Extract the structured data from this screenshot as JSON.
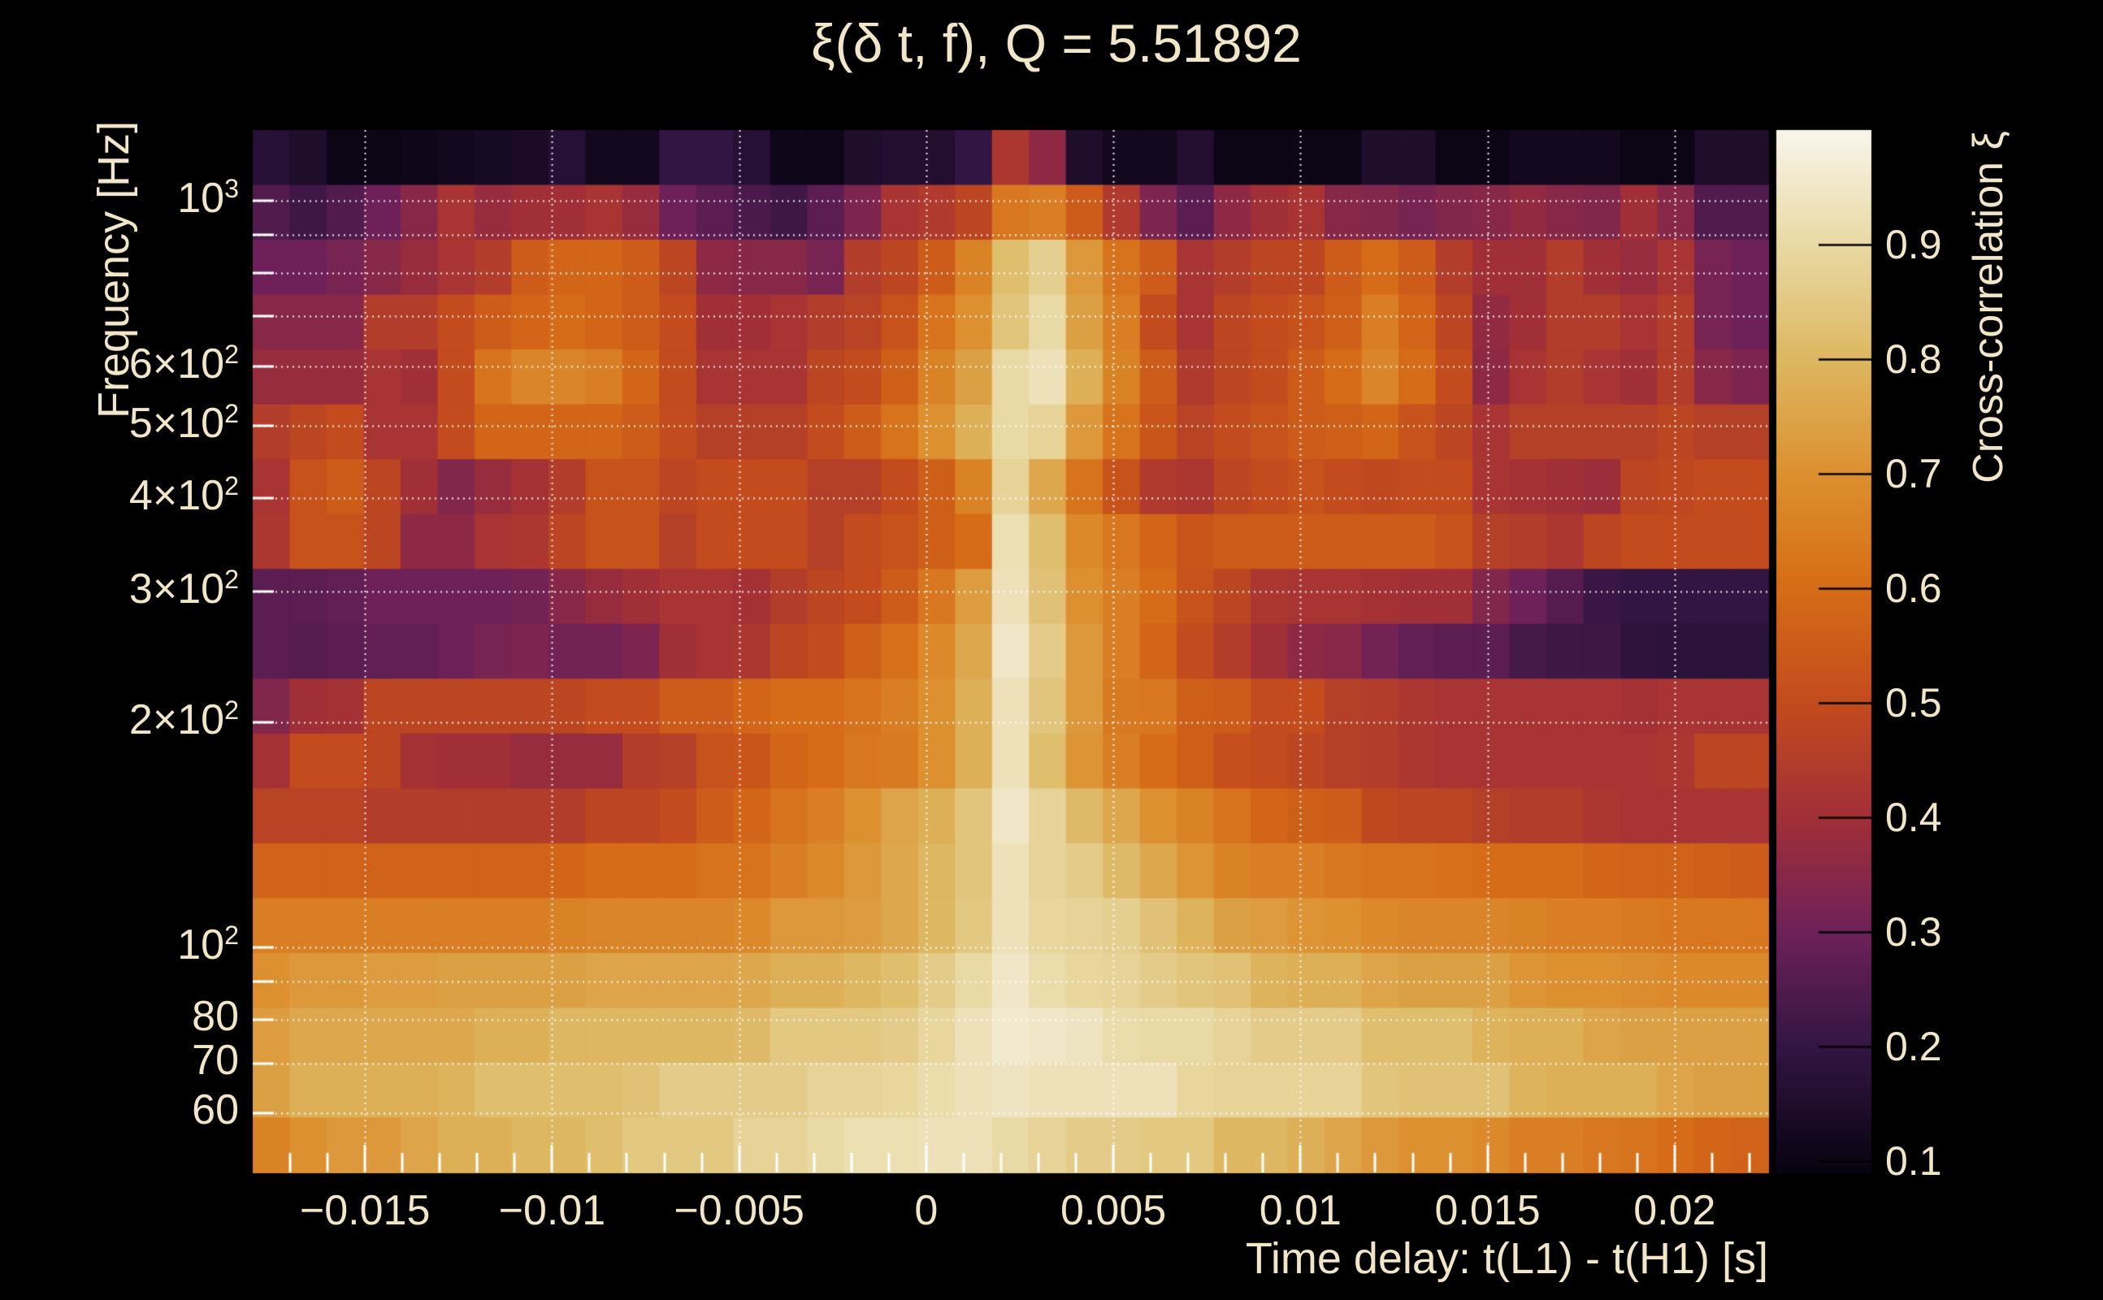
{
  "title": {
    "text": "ξ(δ t, f), Q = 5.51892"
  },
  "axes": {
    "x": {
      "title": "Time delay: t(L1) - t(H1) [s]",
      "ticks": [
        {
          "label": "−0.015",
          "value": -0.015
        },
        {
          "label": "−0.01",
          "value": -0.01
        },
        {
          "label": "−0.005",
          "value": -0.005
        },
        {
          "label": "0",
          "value": 0
        },
        {
          "label": "0.005",
          "value": 0.005
        },
        {
          "label": "0.01",
          "value": 0.01
        },
        {
          "label": "0.015",
          "value": 0.015
        },
        {
          "label": "0.02",
          "value": 0.02
        }
      ],
      "minor_tick_step": 0.001
    },
    "y": {
      "title": "Frequency [Hz]",
      "scale": "log",
      "ticks": [
        {
          "label": "10",
          "sup": "3",
          "value": 1000
        },
        {
          "label": "6×10",
          "sup": "2",
          "value": 600
        },
        {
          "label": "5×10",
          "sup": "2",
          "value": 500
        },
        {
          "label": "4×10",
          "sup": "2",
          "value": 400
        },
        {
          "label": "3×10",
          "sup": "2",
          "value": 300
        },
        {
          "label": "2×10",
          "sup": "2",
          "value": 200
        },
        {
          "label": "10",
          "sup": "2",
          "value": 100
        },
        {
          "label": "80",
          "value": 80
        },
        {
          "label": "70",
          "value": 70
        },
        {
          "label": "60",
          "value": 60
        }
      ],
      "gridline_values": [
        1000,
        900,
        800,
        700,
        600,
        500,
        400,
        300,
        200,
        100,
        90,
        80,
        70,
        60
      ]
    },
    "z": {
      "title": "Cross-correlation ξ",
      "range": [
        0.09,
        1.0
      ],
      "ticks": [
        {
          "label": "0.9",
          "value": 0.9
        },
        {
          "label": "0.8",
          "value": 0.8
        },
        {
          "label": "0.7",
          "value": 0.7
        },
        {
          "label": "0.6",
          "value": 0.6
        },
        {
          "label": "0.5",
          "value": 0.5
        },
        {
          "label": "0.4",
          "value": 0.4
        },
        {
          "label": "0.3",
          "value": 0.3
        },
        {
          "label": "0.2",
          "value": 0.2
        },
        {
          "label": "0.1",
          "value": 0.1
        }
      ]
    }
  },
  "colors": {
    "background": "#000000",
    "text": "#f1e7c8",
    "gridline": "#ffffff",
    "edge_tick": "#ffffff",
    "colorbar_tick": "#000000",
    "colormap_stops": [
      [
        0.09,
        "#070310"
      ],
      [
        0.2,
        "#331543"
      ],
      [
        0.3,
        "#6e2159"
      ],
      [
        0.4,
        "#a12f38"
      ],
      [
        0.5,
        "#c34b1d"
      ],
      [
        0.6,
        "#d66c17"
      ],
      [
        0.7,
        "#dc9030"
      ],
      [
        0.8,
        "#ddb761"
      ],
      [
        0.9,
        "#e9d9a4"
      ],
      [
        1.0,
        "#f8f5ec"
      ]
    ]
  },
  "chart_data": {
    "type": "heatmap",
    "title": "ξ(δ t, f), Q = 5.51892",
    "xlabel": "Time delay: t(L1) - t(H1) [s]",
    "ylabel": "Frequency [Hz]",
    "zlabel": "Cross-correlation ξ",
    "x_range_s": [
      -0.018,
      0.0225
    ],
    "y_range_hz": [
      50,
      1243
    ],
    "y_scale": "log",
    "z_range": [
      0.09,
      1.0
    ],
    "n_cols": 41,
    "n_rows": 19,
    "rows_order": "high_freq_to_low",
    "row_center_freqs_hz": [
      1142,
      965,
      815,
      688,
      581,
      491,
      414,
      350,
      296,
      250,
      211,
      178,
      150,
      127,
      107,
      91,
      77,
      65,
      55
    ],
    "values": [
      [
        0.17,
        0.15,
        0.1,
        0.1,
        0.11,
        0.12,
        0.13,
        0.14,
        0.17,
        0.12,
        0.12,
        0.2,
        0.2,
        0.17,
        0.11,
        0.11,
        0.15,
        0.16,
        0.16,
        0.2,
        0.43,
        0.36,
        0.15,
        0.12,
        0.12,
        0.16,
        0.1,
        0.1,
        0.1,
        0.1,
        0.15,
        0.15,
        0.1,
        0.1,
        0.12,
        0.12,
        0.12,
        0.1,
        0.1,
        0.15,
        0.15
      ],
      [
        0.25,
        0.22,
        0.25,
        0.3,
        0.35,
        0.42,
        0.38,
        0.4,
        0.4,
        0.42,
        0.38,
        0.3,
        0.27,
        0.24,
        0.22,
        0.27,
        0.33,
        0.42,
        0.44,
        0.48,
        0.63,
        0.65,
        0.55,
        0.44,
        0.33,
        0.27,
        0.36,
        0.4,
        0.42,
        0.35,
        0.34,
        0.32,
        0.34,
        0.35,
        0.37,
        0.35,
        0.34,
        0.4,
        0.35,
        0.25,
        0.25
      ],
      [
        0.3,
        0.3,
        0.32,
        0.35,
        0.38,
        0.42,
        0.45,
        0.55,
        0.58,
        0.58,
        0.55,
        0.48,
        0.36,
        0.35,
        0.35,
        0.32,
        0.45,
        0.48,
        0.55,
        0.66,
        0.82,
        0.87,
        0.72,
        0.62,
        0.55,
        0.42,
        0.45,
        0.48,
        0.48,
        0.55,
        0.6,
        0.55,
        0.45,
        0.4,
        0.4,
        0.45,
        0.4,
        0.38,
        0.42,
        0.32,
        0.3
      ],
      [
        0.35,
        0.35,
        0.35,
        0.45,
        0.45,
        0.5,
        0.55,
        0.58,
        0.6,
        0.58,
        0.55,
        0.5,
        0.4,
        0.4,
        0.42,
        0.45,
        0.47,
        0.52,
        0.62,
        0.7,
        0.84,
        0.9,
        0.74,
        0.65,
        0.5,
        0.42,
        0.48,
        0.5,
        0.52,
        0.56,
        0.65,
        0.58,
        0.48,
        0.37,
        0.4,
        0.45,
        0.45,
        0.42,
        0.45,
        0.32,
        0.3
      ],
      [
        0.38,
        0.38,
        0.38,
        0.42,
        0.4,
        0.5,
        0.62,
        0.67,
        0.67,
        0.65,
        0.58,
        0.5,
        0.42,
        0.42,
        0.42,
        0.48,
        0.5,
        0.56,
        0.66,
        0.74,
        0.9,
        0.93,
        0.78,
        0.66,
        0.55,
        0.44,
        0.48,
        0.5,
        0.55,
        0.6,
        0.67,
        0.6,
        0.5,
        0.36,
        0.42,
        0.45,
        0.42,
        0.4,
        0.45,
        0.35,
        0.33
      ],
      [
        0.45,
        0.48,
        0.5,
        0.42,
        0.42,
        0.5,
        0.58,
        0.58,
        0.58,
        0.58,
        0.55,
        0.5,
        0.46,
        0.46,
        0.46,
        0.5,
        0.55,
        0.62,
        0.7,
        0.78,
        0.9,
        0.88,
        0.72,
        0.62,
        0.53,
        0.47,
        0.5,
        0.52,
        0.55,
        0.56,
        0.58,
        0.52,
        0.48,
        0.42,
        0.46,
        0.46,
        0.46,
        0.46,
        0.48,
        0.46,
        0.46
      ],
      [
        0.42,
        0.52,
        0.55,
        0.48,
        0.4,
        0.34,
        0.38,
        0.41,
        0.45,
        0.52,
        0.52,
        0.48,
        0.5,
        0.5,
        0.5,
        0.46,
        0.46,
        0.5,
        0.56,
        0.66,
        0.88,
        0.76,
        0.62,
        0.52,
        0.44,
        0.43,
        0.48,
        0.5,
        0.52,
        0.5,
        0.49,
        0.5,
        0.5,
        0.42,
        0.41,
        0.4,
        0.39,
        0.48,
        0.49,
        0.5,
        0.5
      ],
      [
        0.43,
        0.52,
        0.52,
        0.48,
        0.36,
        0.36,
        0.42,
        0.43,
        0.48,
        0.52,
        0.52,
        0.46,
        0.5,
        0.5,
        0.5,
        0.46,
        0.5,
        0.52,
        0.56,
        0.6,
        0.92,
        0.82,
        0.68,
        0.63,
        0.58,
        0.53,
        0.55,
        0.55,
        0.55,
        0.55,
        0.55,
        0.55,
        0.52,
        0.46,
        0.45,
        0.43,
        0.48,
        0.5,
        0.5,
        0.5,
        0.5
      ],
      [
        0.27,
        0.27,
        0.28,
        0.3,
        0.3,
        0.3,
        0.3,
        0.31,
        0.35,
        0.38,
        0.4,
        0.42,
        0.42,
        0.41,
        0.45,
        0.48,
        0.5,
        0.55,
        0.63,
        0.73,
        0.93,
        0.83,
        0.7,
        0.65,
        0.6,
        0.52,
        0.48,
        0.43,
        0.42,
        0.42,
        0.41,
        0.4,
        0.4,
        0.34,
        0.3,
        0.26,
        0.21,
        0.2,
        0.2,
        0.2,
        0.2
      ],
      [
        0.27,
        0.26,
        0.27,
        0.28,
        0.28,
        0.3,
        0.32,
        0.33,
        0.31,
        0.31,
        0.33,
        0.4,
        0.42,
        0.43,
        0.48,
        0.5,
        0.56,
        0.61,
        0.68,
        0.76,
        0.95,
        0.86,
        0.72,
        0.65,
        0.58,
        0.5,
        0.45,
        0.4,
        0.36,
        0.35,
        0.31,
        0.28,
        0.27,
        0.27,
        0.23,
        0.22,
        0.22,
        0.19,
        0.18,
        0.18,
        0.18
      ],
      [
        0.34,
        0.4,
        0.41,
        0.48,
        0.48,
        0.48,
        0.48,
        0.48,
        0.48,
        0.5,
        0.5,
        0.55,
        0.55,
        0.58,
        0.6,
        0.6,
        0.62,
        0.65,
        0.7,
        0.78,
        0.93,
        0.84,
        0.72,
        0.64,
        0.63,
        0.56,
        0.55,
        0.5,
        0.5,
        0.46,
        0.45,
        0.43,
        0.42,
        0.42,
        0.42,
        0.42,
        0.42,
        0.41,
        0.42,
        0.42,
        0.42
      ],
      [
        0.41,
        0.5,
        0.5,
        0.48,
        0.41,
        0.4,
        0.4,
        0.38,
        0.38,
        0.38,
        0.45,
        0.46,
        0.52,
        0.53,
        0.58,
        0.6,
        0.63,
        0.64,
        0.7,
        0.78,
        0.93,
        0.82,
        0.71,
        0.65,
        0.6,
        0.56,
        0.51,
        0.5,
        0.48,
        0.46,
        0.45,
        0.43,
        0.42,
        0.42,
        0.42,
        0.42,
        0.42,
        0.42,
        0.43,
        0.48,
        0.48
      ],
      [
        0.47,
        0.47,
        0.47,
        0.45,
        0.45,
        0.45,
        0.45,
        0.45,
        0.45,
        0.48,
        0.48,
        0.5,
        0.55,
        0.58,
        0.62,
        0.65,
        0.7,
        0.75,
        0.78,
        0.84,
        0.95,
        0.88,
        0.81,
        0.76,
        0.7,
        0.66,
        0.62,
        0.58,
        0.56,
        0.55,
        0.49,
        0.48,
        0.48,
        0.46,
        0.45,
        0.45,
        0.43,
        0.42,
        0.42,
        0.42,
        0.42
      ],
      [
        0.57,
        0.57,
        0.57,
        0.57,
        0.57,
        0.57,
        0.57,
        0.57,
        0.58,
        0.6,
        0.6,
        0.6,
        0.62,
        0.62,
        0.65,
        0.68,
        0.72,
        0.76,
        0.8,
        0.84,
        0.93,
        0.88,
        0.86,
        0.81,
        0.76,
        0.71,
        0.66,
        0.65,
        0.65,
        0.63,
        0.62,
        0.62,
        0.61,
        0.6,
        0.6,
        0.6,
        0.58,
        0.57,
        0.57,
        0.56,
        0.55
      ],
      [
        0.65,
        0.65,
        0.65,
        0.65,
        0.65,
        0.65,
        0.65,
        0.65,
        0.66,
        0.67,
        0.67,
        0.67,
        0.67,
        0.68,
        0.72,
        0.72,
        0.73,
        0.76,
        0.8,
        0.85,
        0.93,
        0.89,
        0.88,
        0.87,
        0.83,
        0.79,
        0.74,
        0.73,
        0.71,
        0.7,
        0.68,
        0.67,
        0.67,
        0.67,
        0.66,
        0.65,
        0.65,
        0.64,
        0.63,
        0.63,
        0.63
      ],
      [
        0.7,
        0.72,
        0.72,
        0.73,
        0.73,
        0.74,
        0.74,
        0.74,
        0.74,
        0.75,
        0.75,
        0.75,
        0.75,
        0.76,
        0.78,
        0.78,
        0.8,
        0.82,
        0.86,
        0.9,
        0.95,
        0.91,
        0.89,
        0.88,
        0.86,
        0.84,
        0.83,
        0.79,
        0.78,
        0.78,
        0.75,
        0.74,
        0.74,
        0.74,
        0.71,
        0.7,
        0.7,
        0.69,
        0.68,
        0.68,
        0.68
      ],
      [
        0.73,
        0.76,
        0.76,
        0.76,
        0.76,
        0.76,
        0.78,
        0.78,
        0.8,
        0.8,
        0.8,
        0.8,
        0.8,
        0.81,
        0.85,
        0.85,
        0.85,
        0.86,
        0.89,
        0.93,
        0.96,
        0.95,
        0.94,
        0.91,
        0.9,
        0.9,
        0.88,
        0.86,
        0.86,
        0.86,
        0.82,
        0.82,
        0.82,
        0.79,
        0.78,
        0.78,
        0.75,
        0.74,
        0.74,
        0.74,
        0.74
      ],
      [
        0.74,
        0.78,
        0.78,
        0.78,
        0.78,
        0.79,
        0.82,
        0.82,
        0.82,
        0.82,
        0.83,
        0.86,
        0.86,
        0.86,
        0.86,
        0.88,
        0.88,
        0.89,
        0.91,
        0.93,
        0.94,
        0.93,
        0.93,
        0.93,
        0.93,
        0.89,
        0.88,
        0.88,
        0.88,
        0.88,
        0.84,
        0.83,
        0.83,
        0.83,
        0.79,
        0.78,
        0.78,
        0.78,
        0.75,
        0.74,
        0.74
      ],
      [
        0.66,
        0.7,
        0.72,
        0.72,
        0.75,
        0.78,
        0.78,
        0.8,
        0.8,
        0.82,
        0.85,
        0.85,
        0.85,
        0.88,
        0.88,
        0.9,
        0.92,
        0.92,
        0.93,
        0.93,
        0.9,
        0.88,
        0.86,
        0.86,
        0.85,
        0.85,
        0.8,
        0.8,
        0.78,
        0.75,
        0.72,
        0.7,
        0.7,
        0.68,
        0.65,
        0.65,
        0.63,
        0.62,
        0.6,
        0.58,
        0.57
      ]
    ]
  }
}
